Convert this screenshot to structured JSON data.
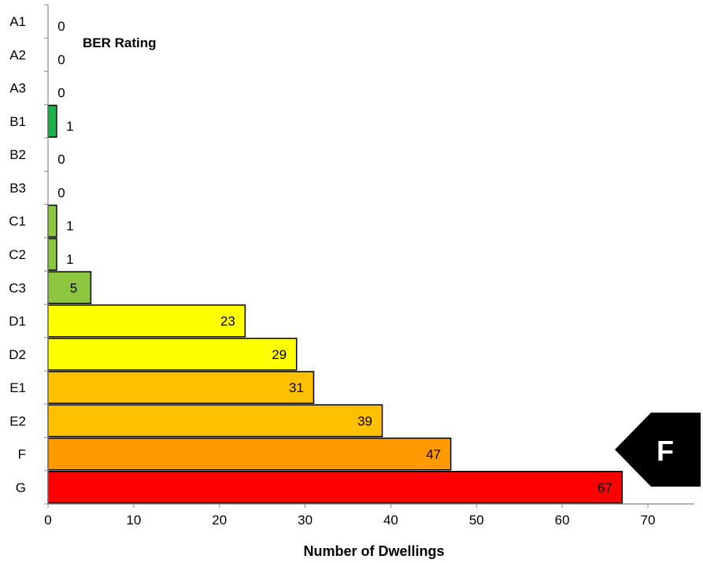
{
  "chart_data": {
    "type": "bar",
    "orientation": "horizontal",
    "title": "BER Rating",
    "xlabel": "Number of Dwellings",
    "ylabel": "",
    "xlim": [
      0,
      70
    ],
    "x_ticks": [
      0,
      10,
      20,
      30,
      40,
      50,
      60,
      70
    ],
    "grid": false,
    "categories": [
      "A1",
      "A2",
      "A3",
      "B1",
      "B2",
      "B3",
      "C1",
      "C2",
      "C3",
      "D1",
      "D2",
      "E1",
      "E2",
      "F",
      "G"
    ],
    "values": [
      0,
      0,
      0,
      1,
      0,
      0,
      1,
      1,
      5,
      23,
      29,
      31,
      39,
      47,
      67
    ],
    "bar_colors": [
      "#00a651",
      "#00a651",
      "#00a651",
      "#1cb14c",
      "#1cb14c",
      "#1cb14c",
      "#8cc63f",
      "#8cc63f",
      "#8cc63f",
      "#ffff00",
      "#ffff00",
      "#ffc000",
      "#ffc000",
      "#ff9900",
      "#ff0000"
    ],
    "highlight_label": "F",
    "highlight_color": "#000000"
  }
}
